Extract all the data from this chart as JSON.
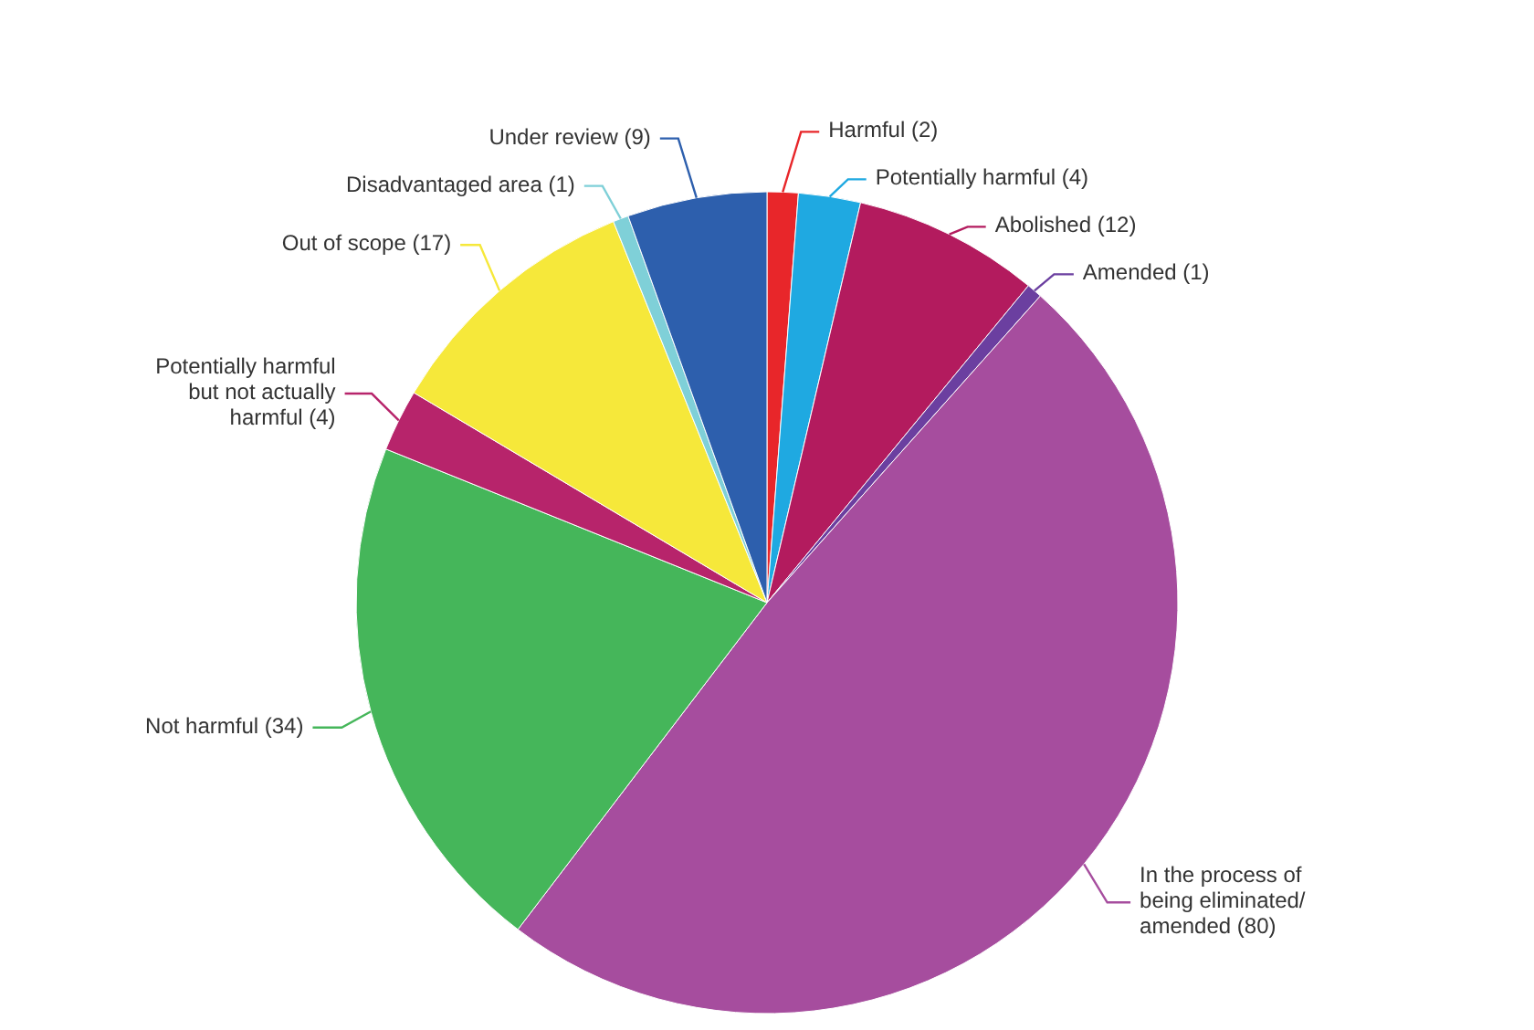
{
  "chart_data": {
    "type": "pie",
    "categories": [
      "Harmful (2)",
      "Potentially harmful (4)",
      "Abolished (12)",
      "Amended (1)",
      "In the process of being eliminated/ amended (80)",
      "Not harmful (34)",
      "Potentially harmful but not actually harmful (4)",
      "Out of scope (17)",
      "Disadvantaged area (1)",
      "Under review (9)"
    ],
    "values": [
      2,
      4,
      12,
      1,
      80,
      34,
      4,
      17,
      1,
      9
    ],
    "colors": [
      "#e8262a",
      "#1fa9e1",
      "#b31b5e",
      "#6b3fa0",
      "#a64d9e",
      "#45b65a",
      "#b7246b",
      "#f6e83a",
      "#7fd0d8",
      "#2d5fad"
    ],
    "legend": false
  }
}
